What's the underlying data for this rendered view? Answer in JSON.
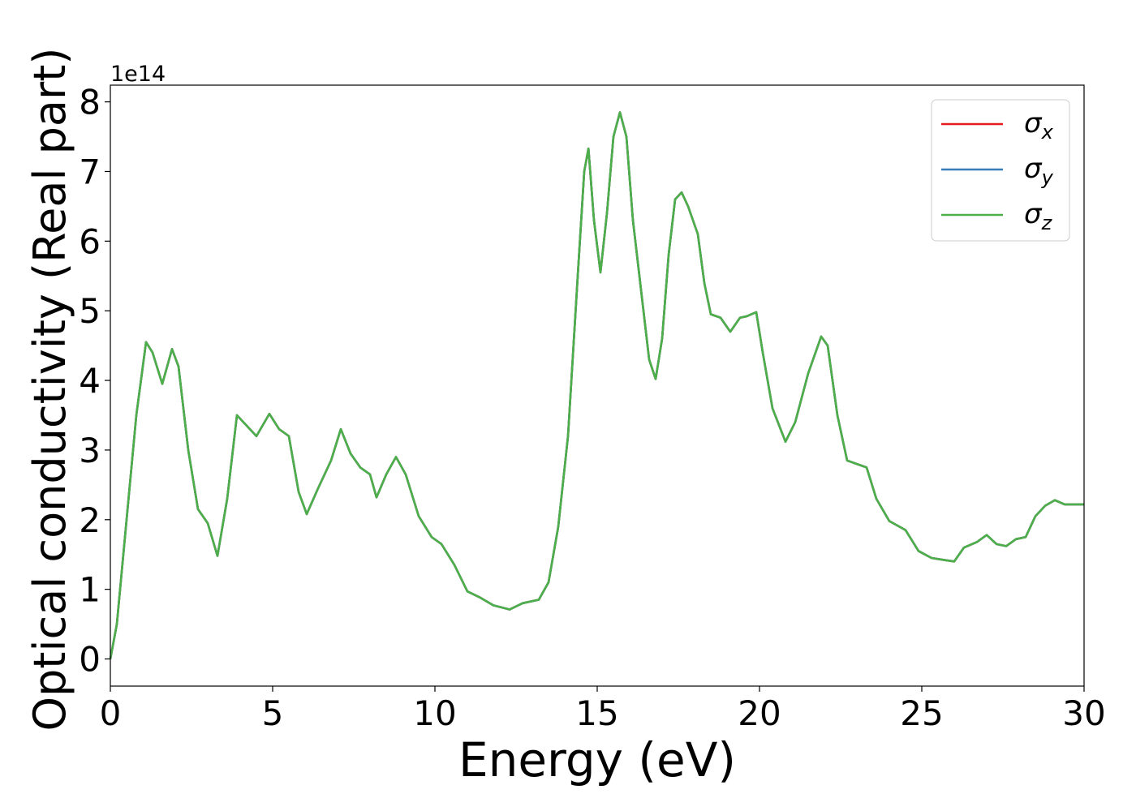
{
  "chart_data": {
    "type": "line",
    "xlabel": "Energy (eV)",
    "ylabel": "Optical conductivity (Real part)",
    "y_offset_label": "1e14",
    "x": [
      0,
      0.2,
      0.5,
      0.8,
      1.1,
      1.3,
      1.6,
      1.9,
      2.1,
      2.4,
      2.7,
      3.0,
      3.3,
      3.6,
      3.9,
      4.2,
      4.5,
      4.9,
      5.2,
      5.5,
      5.8,
      6.05,
      6.4,
      6.8,
      7.1,
      7.4,
      7.7,
      8.0,
      8.2,
      8.5,
      8.8,
      9.1,
      9.5,
      9.9,
      10.2,
      10.6,
      11.0,
      11.4,
      11.8,
      12.3,
      12.7,
      13.2,
      13.5,
      13.8,
      14.1,
      14.4,
      14.6,
      14.73,
      14.9,
      15.1,
      15.3,
      15.5,
      15.7,
      15.9,
      16.1,
      16.4,
      16.6,
      16.8,
      17.0,
      17.2,
      17.4,
      17.6,
      17.8,
      18.1,
      18.3,
      18.5,
      18.8,
      19.1,
      19.4,
      19.6,
      19.9,
      20.1,
      20.4,
      20.8,
      21.1,
      21.5,
      21.9,
      22.1,
      22.4,
      22.7,
      23.0,
      23.3,
      23.6,
      24.0,
      24.5,
      24.9,
      25.3,
      25.7,
      26.0,
      26.3,
      26.7,
      27.0,
      27.3,
      27.6,
      27.9,
      28.2,
      28.5,
      28.8,
      29.1,
      29.4,
      30.0
    ],
    "series": [
      {
        "name": "σx",
        "color": "#e41a1c",
        "values": [
          0.0,
          0.5,
          2.0,
          3.5,
          4.55,
          4.4,
          3.95,
          4.45,
          4.2,
          3.0,
          2.15,
          1.95,
          1.48,
          2.3,
          3.5,
          3.35,
          3.2,
          3.52,
          3.3,
          3.2,
          2.4,
          2.08,
          2.45,
          2.85,
          3.3,
          2.95,
          2.75,
          2.65,
          2.32,
          2.65,
          2.9,
          2.65,
          2.05,
          1.75,
          1.65,
          1.35,
          0.97,
          0.88,
          0.77,
          0.71,
          0.8,
          0.85,
          1.1,
          1.9,
          3.2,
          5.5,
          7.0,
          7.33,
          6.3,
          5.55,
          6.4,
          7.5,
          7.85,
          7.5,
          6.3,
          5.1,
          4.3,
          4.02,
          4.6,
          5.8,
          6.6,
          6.7,
          6.5,
          6.1,
          5.4,
          4.95,
          4.9,
          4.7,
          4.9,
          4.92,
          4.98,
          4.4,
          3.6,
          3.12,
          3.4,
          4.1,
          4.63,
          4.5,
          3.5,
          2.85,
          2.8,
          2.75,
          2.3,
          1.98,
          1.85,
          1.55,
          1.45,
          1.42,
          1.4,
          1.6,
          1.68,
          1.78,
          1.65,
          1.62,
          1.72,
          1.75,
          2.05,
          2.2,
          2.28,
          2.22,
          2.22
        ]
      },
      {
        "name": "σy",
        "color": "#377eb8",
        "values": [
          0.0,
          0.5,
          2.0,
          3.5,
          4.55,
          4.4,
          3.95,
          4.45,
          4.2,
          3.0,
          2.15,
          1.95,
          1.48,
          2.3,
          3.5,
          3.35,
          3.2,
          3.52,
          3.3,
          3.2,
          2.4,
          2.08,
          2.45,
          2.85,
          3.3,
          2.95,
          2.75,
          2.65,
          2.32,
          2.65,
          2.9,
          2.65,
          2.05,
          1.75,
          1.65,
          1.35,
          0.97,
          0.88,
          0.77,
          0.71,
          0.8,
          0.85,
          1.1,
          1.9,
          3.2,
          5.5,
          7.0,
          7.33,
          6.3,
          5.55,
          6.4,
          7.5,
          7.85,
          7.5,
          6.3,
          5.1,
          4.3,
          4.02,
          4.6,
          5.8,
          6.6,
          6.7,
          6.5,
          6.1,
          5.4,
          4.95,
          4.9,
          4.7,
          4.9,
          4.92,
          4.98,
          4.4,
          3.6,
          3.12,
          3.4,
          4.1,
          4.63,
          4.5,
          3.5,
          2.85,
          2.8,
          2.75,
          2.3,
          1.98,
          1.85,
          1.55,
          1.45,
          1.42,
          1.4,
          1.6,
          1.68,
          1.78,
          1.65,
          1.62,
          1.72,
          1.75,
          2.05,
          2.2,
          2.28,
          2.22,
          2.22
        ]
      },
      {
        "name": "σz",
        "color": "#4daf4a",
        "values": [
          0.0,
          0.5,
          2.0,
          3.5,
          4.55,
          4.4,
          3.95,
          4.45,
          4.2,
          3.0,
          2.15,
          1.95,
          1.48,
          2.3,
          3.5,
          3.35,
          3.2,
          3.52,
          3.3,
          3.2,
          2.4,
          2.08,
          2.45,
          2.85,
          3.3,
          2.95,
          2.75,
          2.65,
          2.32,
          2.65,
          2.9,
          2.65,
          2.05,
          1.75,
          1.65,
          1.35,
          0.97,
          0.88,
          0.77,
          0.71,
          0.8,
          0.85,
          1.1,
          1.9,
          3.2,
          5.5,
          7.0,
          7.33,
          6.3,
          5.55,
          6.4,
          7.5,
          7.85,
          7.5,
          6.3,
          5.1,
          4.3,
          4.02,
          4.6,
          5.8,
          6.6,
          6.7,
          6.5,
          6.1,
          5.4,
          4.95,
          4.9,
          4.7,
          4.9,
          4.92,
          4.98,
          4.4,
          3.6,
          3.12,
          3.4,
          4.1,
          4.63,
          4.5,
          3.5,
          2.85,
          2.8,
          2.75,
          2.3,
          1.98,
          1.85,
          1.55,
          1.45,
          1.42,
          1.4,
          1.6,
          1.68,
          1.78,
          1.65,
          1.62,
          1.72,
          1.75,
          2.05,
          2.2,
          2.28,
          2.22,
          2.22
        ]
      }
    ],
    "xlim": [
      0,
      30
    ],
    "xticks": [
      0,
      5,
      10,
      15,
      20,
      25,
      30
    ],
    "ylim": [
      -0.39,
      8.24
    ],
    "yticks": [
      0,
      1,
      2,
      3,
      4,
      5,
      6,
      7,
      8
    ],
    "legend": "upper right",
    "grid": false
  }
}
